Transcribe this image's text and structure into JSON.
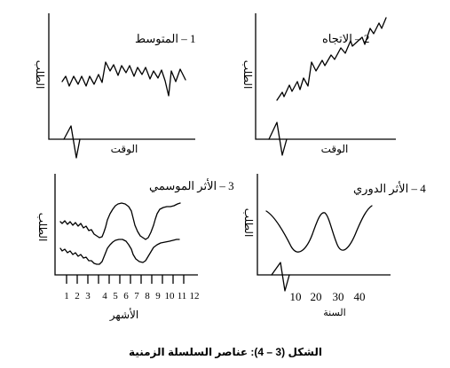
{
  "panels": [
    {
      "title": "1 – المتوسط",
      "y_label": "الطلب",
      "x_label": "الوقت"
    },
    {
      "title": "2 – الاتجاه",
      "y_label": "الطلب",
      "x_label": "الوقت"
    },
    {
      "title": "3 – الأثر الموسمي",
      "y_label": "الطلب",
      "x_label": "الأشهر",
      "ticks": [
        "1",
        "2",
        "3",
        "4",
        "5",
        "6",
        "7",
        "8",
        "9",
        "10",
        "11",
        "12"
      ]
    },
    {
      "title": "4 – الأثر الدوري",
      "y_label": "الطلب",
      "x_label": "السنة",
      "ticks": [
        "10",
        "20",
        "30",
        "40"
      ]
    }
  ],
  "caption": "الشكل (3 – 4): عناصر السلسلة الزمنية"
}
